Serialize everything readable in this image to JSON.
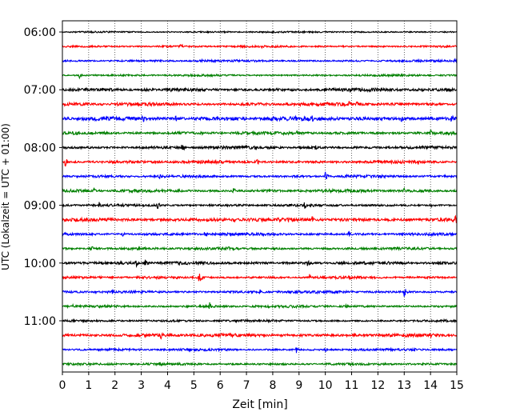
{
  "chart_data": {
    "type": "line",
    "title": "",
    "xlabel": "Zeit  [min]",
    "ylabel": "UTC (Lokalzeit = UTC + 01:00)",
    "xlim": [
      0,
      15
    ],
    "x_ticks": [
      "0",
      "1",
      "2",
      "3",
      "4",
      "5",
      "6",
      "7",
      "8",
      "9",
      "10",
      "11",
      "12",
      "13",
      "14",
      "15"
    ],
    "y_tick_labels": [
      "06:00",
      "07:00",
      "08:00",
      "09:00",
      "10:00",
      "11:00"
    ],
    "y_tick_trace_index": [
      0,
      4,
      8,
      12,
      16,
      20
    ],
    "grid": "vertical dotted",
    "trace_colors": [
      "#000000",
      "#ff0000",
      "#0000ff",
      "#008000"
    ],
    "trace_start": "05:60",
    "trace_interval_min": 15,
    "traces": [
      {
        "start": "06:00",
        "amplitude": 1.0,
        "events": [
          {
            "t": 6.3,
            "a": 1.5
          }
        ]
      },
      {
        "start": "06:15",
        "amplitude": 1.2,
        "events": [
          {
            "t": 4.5,
            "a": 3.5
          },
          {
            "t": 7.6,
            "a": 3.0
          },
          {
            "t": 14.6,
            "a": 3.0
          }
        ]
      },
      {
        "start": "06:30",
        "amplitude": 1.3,
        "events": [
          {
            "t": 5.3,
            "a": 2.5
          },
          {
            "t": 7.4,
            "a": 3.0
          },
          {
            "t": 14.9,
            "a": 3.0
          }
        ]
      },
      {
        "start": "06:45",
        "amplitude": 1.2,
        "events": [
          {
            "t": 0.65,
            "a": 4.5
          },
          {
            "t": 14.1,
            "a": 2.5
          }
        ]
      },
      {
        "start": "07:00",
        "amplitude": 2.0,
        "events": [
          {
            "t": 0.9,
            "a": 4.0
          },
          {
            "t": 3.0,
            "a": 3.5
          },
          {
            "t": 4.0,
            "a": 4.0
          },
          {
            "t": 4.1,
            "a": 4.0
          },
          {
            "t": 14.6,
            "a": 5.0
          }
        ]
      },
      {
        "start": "07:15",
        "amplitude": 2.0,
        "events": [
          {
            "t": 10.9,
            "a": 4.0
          },
          {
            "t": 11.2,
            "a": 3.5
          }
        ]
      },
      {
        "start": "07:30",
        "amplitude": 2.5,
        "events": [
          {
            "t": 2.5,
            "a": 6.0
          },
          {
            "t": 3.05,
            "a": 7.0
          },
          {
            "t": 4.3,
            "a": 5.0
          },
          {
            "t": 9.5,
            "a": 5.0
          },
          {
            "t": 12.9,
            "a": 5.0
          },
          {
            "t": 14.8,
            "a": 6.0
          }
        ]
      },
      {
        "start": "07:45",
        "amplitude": 1.8,
        "events": [
          {
            "t": 4.4,
            "a": 4.0
          },
          {
            "t": 8.9,
            "a": 5.0
          },
          {
            "t": 14.0,
            "a": 5.0
          }
        ]
      },
      {
        "start": "08:00",
        "amplitude": 1.8,
        "events": [
          {
            "t": 4.55,
            "a": 6.0
          },
          {
            "t": 9.6,
            "a": 5.5
          }
        ]
      },
      {
        "start": "08:15",
        "amplitude": 1.8,
        "events": [
          {
            "t": 0.1,
            "a": 7.0
          },
          {
            "t": 7.4,
            "a": 5.0
          },
          {
            "t": 13.5,
            "a": 6.0
          }
        ]
      },
      {
        "start": "08:30",
        "amplitude": 1.6,
        "events": [
          {
            "t": 3.7,
            "a": 4.5
          },
          {
            "t": 10.0,
            "a": 6.0
          },
          {
            "t": 10.8,
            "a": 3.5
          }
        ]
      },
      {
        "start": "08:45",
        "amplitude": 1.8,
        "events": [
          {
            "t": 1.2,
            "a": 3.5
          },
          {
            "t": 6.5,
            "a": 5.0
          },
          {
            "t": 13.0,
            "a": 4.0
          }
        ]
      },
      {
        "start": "09:00",
        "amplitude": 1.5,
        "events": [
          {
            "t": 1.4,
            "a": 4.0
          },
          {
            "t": 3.6,
            "a": 6.5
          },
          {
            "t": 9.2,
            "a": 5.5
          },
          {
            "t": 14.0,
            "a": 3.0
          }
        ]
      },
      {
        "start": "09:15",
        "amplitude": 2.2,
        "events": [
          {
            "t": 6.5,
            "a": 4.5
          },
          {
            "t": 9.5,
            "a": 5.5
          },
          {
            "t": 14.95,
            "a": 6.5
          }
        ]
      },
      {
        "start": "09:30",
        "amplitude": 1.6,
        "events": [
          {
            "t": 2.3,
            "a": 3.5
          },
          {
            "t": 5.4,
            "a": 5.5
          },
          {
            "t": 10.9,
            "a": 5.0
          },
          {
            "t": 12.9,
            "a": 3.5
          }
        ]
      },
      {
        "start": "09:45",
        "amplitude": 1.6,
        "events": [
          {
            "t": 1.1,
            "a": 5.0
          },
          {
            "t": 6.3,
            "a": 4.0
          },
          {
            "t": 8.0,
            "a": 3.5
          },
          {
            "t": 11.4,
            "a": 3.5
          }
        ]
      },
      {
        "start": "10:00",
        "amplitude": 1.8,
        "events": [
          {
            "t": 2.8,
            "a": 5.0
          },
          {
            "t": 3.15,
            "a": 7.5
          },
          {
            "t": 9.3,
            "a": 6.0
          },
          {
            "t": 14.3,
            "a": 4.0
          }
        ]
      },
      {
        "start": "10:15",
        "amplitude": 1.5,
        "events": [
          {
            "t": 5.2,
            "a": 7.5
          },
          {
            "t": 9.4,
            "a": 4.5
          }
        ]
      },
      {
        "start": "10:30",
        "amplitude": 1.6,
        "events": [
          {
            "t": 1.9,
            "a": 5.5
          },
          {
            "t": 7.5,
            "a": 4.0
          },
          {
            "t": 13.0,
            "a": 7.0
          }
        ]
      },
      {
        "start": "10:45",
        "amplitude": 1.5,
        "events": [
          {
            "t": 0.4,
            "a": 3.5
          },
          {
            "t": 5.6,
            "a": 5.0
          },
          {
            "t": 10.8,
            "a": 4.0
          }
        ]
      },
      {
        "start": "11:00",
        "amplitude": 1.4,
        "events": [
          {
            "t": 6.5,
            "a": 3.5
          }
        ]
      },
      {
        "start": "11:15",
        "amplitude": 2.0,
        "events": [
          {
            "t": 3.75,
            "a": 5.0
          },
          {
            "t": 14.0,
            "a": 4.0
          }
        ]
      },
      {
        "start": "11:30",
        "amplitude": 1.4,
        "events": [
          {
            "t": 8.9,
            "a": 5.0
          },
          {
            "t": 10.0,
            "a": 4.0
          },
          {
            "t": 13.4,
            "a": 3.5
          }
        ]
      },
      {
        "start": "11:45",
        "amplitude": 1.4,
        "events": [
          {
            "t": 3.7,
            "a": 4.0
          }
        ]
      }
    ]
  }
}
